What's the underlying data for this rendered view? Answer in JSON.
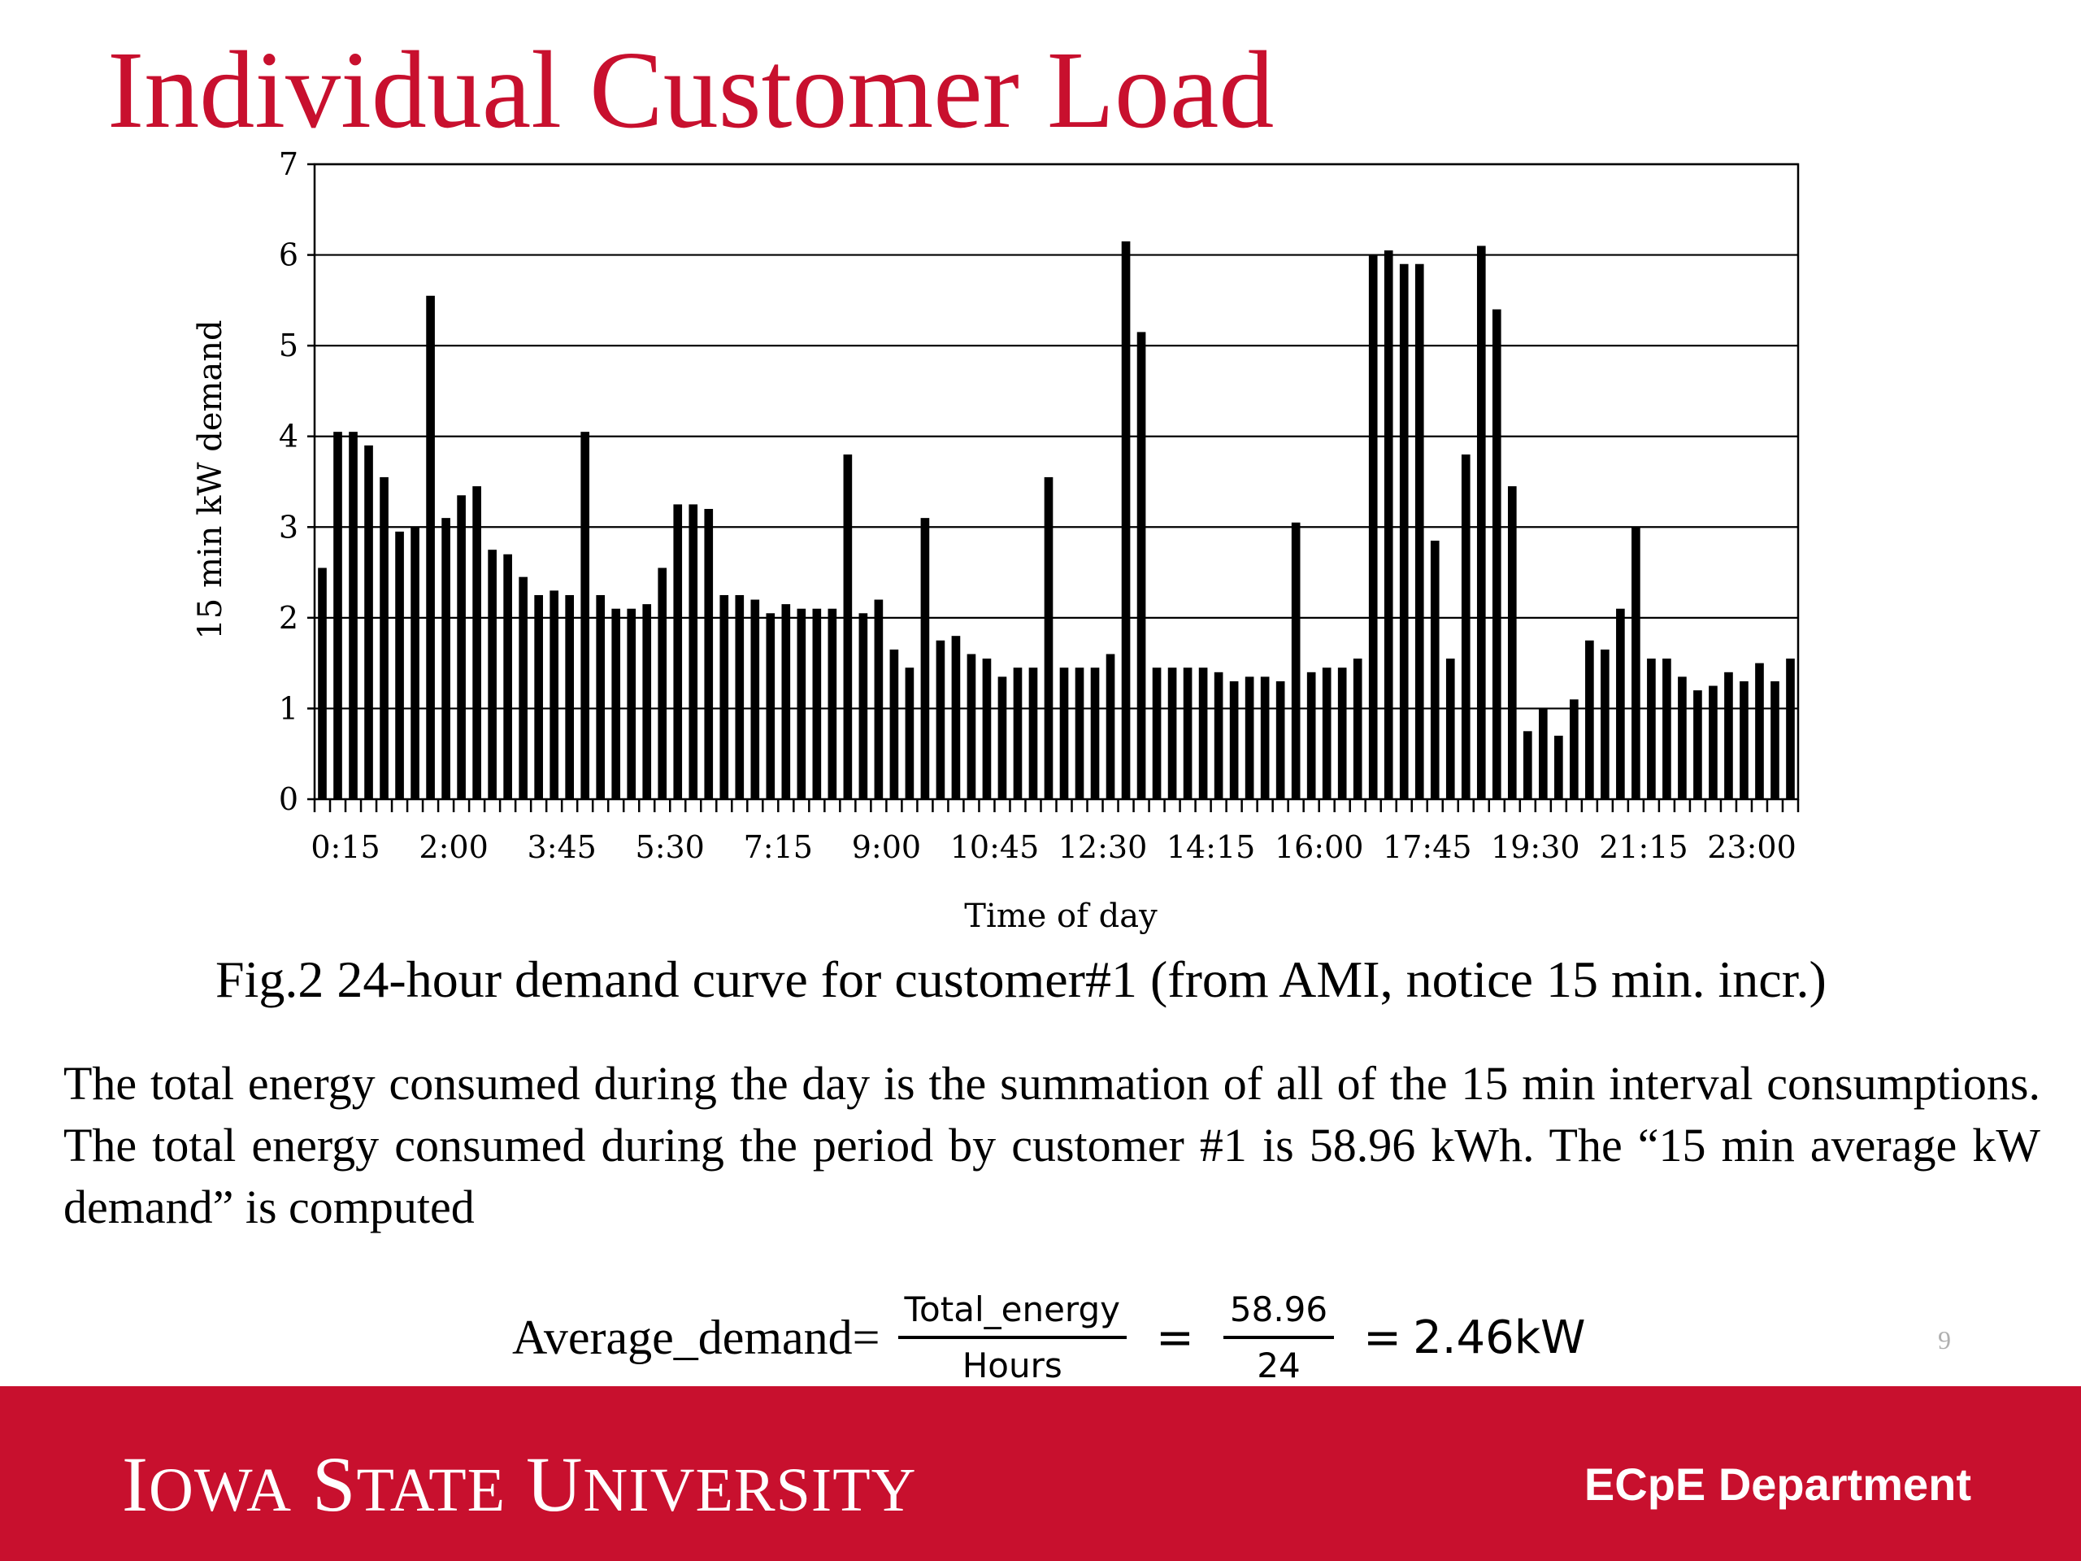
{
  "slide": {
    "title": "Individual Customer Load",
    "caption": "Fig.2 24-hour demand curve for customer#1 (from AMI, notice 15 min. incr.)",
    "paragraph": "The total energy consumed during the day is the summation of all of the 15 min interval consumptions. The total energy consumed during the period by customer #1 is 58.96 kWh. The “15 min average kW demand” is computed",
    "formula": {
      "lhs": "Average_demand=",
      "numerator": "Total_energy",
      "denominator": "Hours",
      "eq1": "=",
      "numerator2": "58.96",
      "denominator2": "24",
      "eq2": "=",
      "result": "2.46kW"
    },
    "page_number": "9"
  },
  "footer": {
    "logo_text": "IOWA STATE UNIVERSITY",
    "department": "ECpE Department",
    "background_color": "#c8102e"
  },
  "chart_data": {
    "type": "bar",
    "xlabel": "Time of day",
    "ylabel": "15 min kW demand",
    "ylim": [
      0,
      7
    ],
    "yticks": [
      0,
      1,
      2,
      3,
      4,
      5,
      6,
      7
    ],
    "grid": "horizontal",
    "bar_color": "#000000",
    "x_tick_labels": [
      "0:15",
      "2:00",
      "3:45",
      "5:30",
      "7:15",
      "9:00",
      "10:45",
      "12:30",
      "14:15",
      "16:00",
      "17:45",
      "19:30",
      "21:15",
      "23:00"
    ],
    "x_tick_label_every": 7,
    "categories": [
      "0:15",
      "0:30",
      "0:45",
      "1:00",
      "1:15",
      "1:30",
      "1:45",
      "2:00",
      "2:15",
      "2:30",
      "2:45",
      "3:00",
      "3:15",
      "3:30",
      "3:45",
      "4:00",
      "4:15",
      "4:30",
      "4:45",
      "5:00",
      "5:15",
      "5:30",
      "5:45",
      "6:00",
      "6:15",
      "6:30",
      "6:45",
      "7:00",
      "7:15",
      "7:30",
      "7:45",
      "8:00",
      "8:15",
      "8:30",
      "8:45",
      "9:00",
      "9:15",
      "9:30",
      "9:45",
      "10:00",
      "10:15",
      "10:30",
      "10:45",
      "11:00",
      "11:15",
      "11:30",
      "11:45",
      "12:00",
      "12:15",
      "12:30",
      "12:45",
      "13:00",
      "13:15",
      "13:30",
      "13:45",
      "14:00",
      "14:15",
      "14:30",
      "14:45",
      "15:00",
      "15:15",
      "15:30",
      "15:45",
      "16:00",
      "16:15",
      "16:30",
      "16:45",
      "17:00",
      "17:15",
      "17:30",
      "17:45",
      "18:00",
      "18:15",
      "18:30",
      "18:45",
      "19:00",
      "19:15",
      "19:30",
      "19:45",
      "20:00",
      "20:15",
      "20:30",
      "20:45",
      "21:00",
      "21:15",
      "21:30",
      "21:45",
      "22:00",
      "22:15",
      "22:30",
      "22:45",
      "23:00",
      "23:15",
      "23:30",
      "23:45",
      "24:00"
    ],
    "values": [
      2.55,
      4.05,
      4.05,
      3.9,
      3.55,
      2.95,
      3.0,
      5.55,
      3.1,
      3.35,
      3.45,
      2.75,
      2.7,
      2.45,
      2.25,
      2.3,
      2.25,
      4.05,
      2.25,
      2.1,
      2.1,
      2.15,
      2.55,
      3.25,
      3.25,
      3.2,
      2.25,
      2.25,
      2.2,
      2.05,
      2.15,
      2.1,
      2.1,
      2.1,
      3.8,
      2.05,
      2.2,
      1.65,
      1.45,
      3.1,
      1.75,
      1.8,
      1.6,
      1.55,
      1.35,
      1.45,
      1.45,
      3.55,
      1.45,
      1.45,
      1.45,
      1.6,
      6.15,
      5.15,
      1.45,
      1.45,
      1.45,
      1.45,
      1.4,
      1.3,
      1.35,
      1.35,
      1.3,
      3.05,
      1.4,
      1.45,
      1.45,
      1.55,
      6.0,
      6.05,
      5.9,
      5.9,
      2.85,
      1.55,
      3.8,
      6.1,
      5.4,
      3.45,
      0.75,
      1.0,
      0.7,
      1.1,
      1.75,
      1.65,
      2.1,
      3.0,
      1.55,
      1.55,
      1.35,
      1.2,
      1.25,
      1.4,
      1.3,
      1.5,
      1.3,
      1.55
    ]
  }
}
